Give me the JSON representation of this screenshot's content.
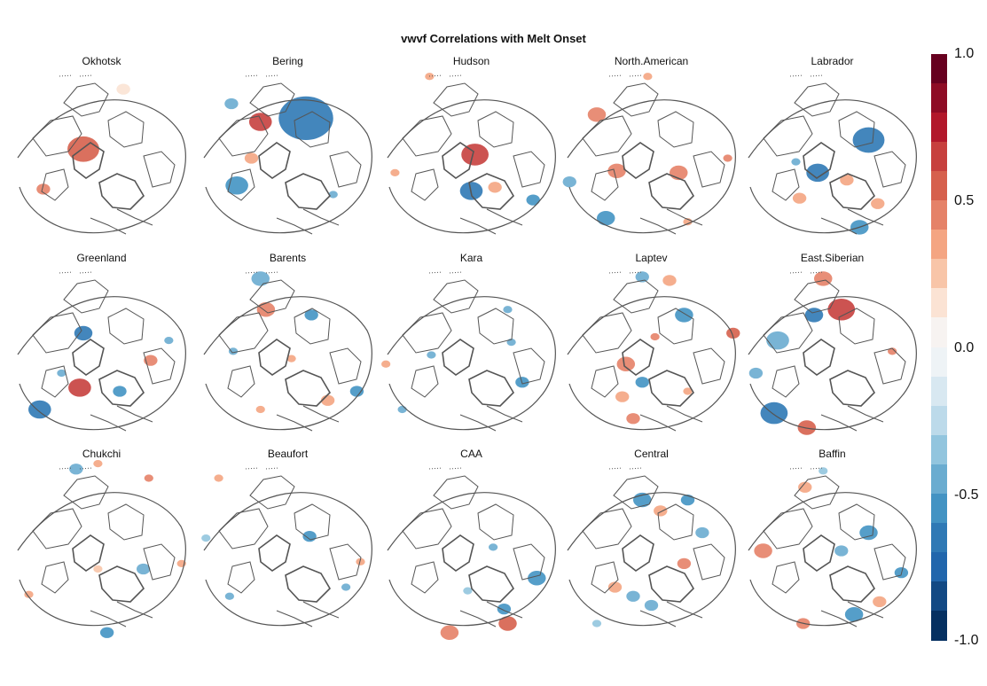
{
  "title": "vwvf Correlations with Melt Onset",
  "panels": [
    {
      "name": "Okhotsk",
      "blobs": [
        [
          0.62,
          0.12,
          0.03,
          0.15
        ],
        [
          0.4,
          0.45,
          0.07,
          0.6
        ],
        [
          0.18,
          0.67,
          0.03,
          0.45
        ]
      ]
    },
    {
      "name": "Bering",
      "blobs": [
        [
          0.6,
          0.28,
          0.12,
          -0.65
        ],
        [
          0.35,
          0.3,
          0.05,
          0.7
        ],
        [
          0.19,
          0.2,
          0.03,
          -0.45
        ],
        [
          0.3,
          0.5,
          0.03,
          0.4
        ],
        [
          0.22,
          0.65,
          0.05,
          -0.5
        ],
        [
          0.75,
          0.7,
          0.02,
          -0.4
        ]
      ]
    },
    {
      "name": "Hudson",
      "blobs": [
        [
          0.52,
          0.48,
          0.06,
          0.7
        ],
        [
          0.5,
          0.68,
          0.05,
          -0.6
        ],
        [
          0.63,
          0.66,
          0.03,
          0.4
        ],
        [
          0.84,
          0.73,
          0.03,
          -0.5
        ],
        [
          0.27,
          0.05,
          0.02,
          0.4
        ],
        [
          0.08,
          0.58,
          0.02,
          0.4
        ]
      ]
    },
    {
      "name": "North.American",
      "blobs": [
        [
          0.48,
          0.05,
          0.02,
          0.4
        ],
        [
          0.2,
          0.26,
          0.04,
          0.45
        ],
        [
          0.31,
          0.57,
          0.04,
          0.45
        ],
        [
          0.65,
          0.58,
          0.04,
          0.5
        ],
        [
          0.25,
          0.83,
          0.04,
          -0.5
        ],
        [
          0.05,
          0.63,
          0.03,
          -0.45
        ],
        [
          0.92,
          0.5,
          0.02,
          0.5
        ],
        [
          0.7,
          0.85,
          0.02,
          0.35
        ]
      ]
    },
    {
      "name": "Labrador",
      "blobs": [
        [
          0.7,
          0.4,
          0.07,
          -0.65
        ],
        [
          0.42,
          0.58,
          0.05,
          -0.6
        ],
        [
          0.58,
          0.62,
          0.03,
          0.4
        ],
        [
          0.32,
          0.72,
          0.03,
          0.4
        ],
        [
          0.65,
          0.88,
          0.04,
          -0.5
        ],
        [
          0.75,
          0.75,
          0.03,
          0.4
        ],
        [
          0.3,
          0.52,
          0.02,
          -0.45
        ]
      ]
    },
    {
      "name": "Greenland",
      "blobs": [
        [
          0.4,
          0.38,
          0.04,
          -0.6
        ],
        [
          0.38,
          0.68,
          0.05,
          0.65
        ],
        [
          0.16,
          0.8,
          0.05,
          -0.6
        ],
        [
          0.6,
          0.7,
          0.03,
          -0.5
        ],
        [
          0.77,
          0.53,
          0.03,
          0.5
        ],
        [
          0.87,
          0.42,
          0.02,
          -0.4
        ],
        [
          0.28,
          0.6,
          0.02,
          -0.4
        ]
      ]
    },
    {
      "name": "Barents",
      "blobs": [
        [
          0.38,
          0.25,
          0.04,
          0.45
        ],
        [
          0.63,
          0.28,
          0.03,
          -0.55
        ],
        [
          0.35,
          0.08,
          0.04,
          -0.4
        ],
        [
          0.88,
          0.7,
          0.03,
          -0.5
        ],
        [
          0.72,
          0.75,
          0.03,
          0.4
        ],
        [
          0.35,
          0.8,
          0.02,
          0.4
        ],
        [
          0.2,
          0.48,
          0.02,
          -0.4
        ],
        [
          0.52,
          0.52,
          0.02,
          0.4
        ]
      ]
    },
    {
      "name": "Kara",
      "blobs": [
        [
          0.7,
          0.25,
          0.02,
          -0.4
        ],
        [
          0.72,
          0.43,
          0.02,
          -0.4
        ],
        [
          0.78,
          0.65,
          0.03,
          -0.5
        ],
        [
          0.12,
          0.8,
          0.02,
          -0.4
        ],
        [
          0.03,
          0.55,
          0.02,
          0.4
        ],
        [
          0.28,
          0.5,
          0.02,
          -0.4
        ]
      ]
    },
    {
      "name": "Laptev",
      "blobs": [
        [
          0.45,
          0.07,
          0.03,
          -0.45
        ],
        [
          0.6,
          0.09,
          0.03,
          0.4
        ],
        [
          0.68,
          0.28,
          0.04,
          -0.55
        ],
        [
          0.95,
          0.38,
          0.03,
          0.55
        ],
        [
          0.52,
          0.4,
          0.02,
          0.45
        ],
        [
          0.45,
          0.65,
          0.03,
          -0.55
        ],
        [
          0.36,
          0.55,
          0.04,
          0.5
        ],
        [
          0.34,
          0.73,
          0.03,
          0.4
        ],
        [
          0.4,
          0.85,
          0.03,
          0.45
        ],
        [
          0.7,
          0.7,
          0.02,
          0.4
        ]
      ]
    },
    {
      "name": "East.Siberian",
      "blobs": [
        [
          0.55,
          0.25,
          0.06,
          0.65
        ],
        [
          0.4,
          0.28,
          0.04,
          -0.6
        ],
        [
          0.45,
          0.08,
          0.04,
          0.45
        ],
        [
          0.2,
          0.42,
          0.05,
          -0.45
        ],
        [
          0.18,
          0.82,
          0.06,
          -0.65
        ],
        [
          0.36,
          0.9,
          0.04,
          0.55
        ],
        [
          0.08,
          0.6,
          0.03,
          -0.4
        ],
        [
          0.83,
          0.48,
          0.02,
          0.45
        ]
      ]
    },
    {
      "name": "Chukchi",
      "blobs": [
        [
          0.36,
          0.05,
          0.03,
          -0.45
        ],
        [
          0.48,
          0.02,
          0.02,
          0.4
        ],
        [
          0.76,
          0.1,
          0.02,
          0.45
        ],
        [
          0.73,
          0.6,
          0.03,
          -0.4
        ],
        [
          0.94,
          0.57,
          0.02,
          0.4
        ],
        [
          0.1,
          0.74,
          0.02,
          0.4
        ],
        [
          0.53,
          0.95,
          0.03,
          -0.5
        ],
        [
          0.48,
          0.6,
          0.02,
          0.3
        ]
      ]
    },
    {
      "name": "Beaufort",
      "blobs": [
        [
          0.12,
          0.1,
          0.02,
          0.4
        ],
        [
          0.62,
          0.42,
          0.03,
          -0.5
        ],
        [
          0.82,
          0.7,
          0.02,
          -0.4
        ],
        [
          0.18,
          0.75,
          0.02,
          -0.4
        ],
        [
          0.05,
          0.43,
          0.02,
          -0.35
        ],
        [
          0.9,
          0.56,
          0.02,
          0.4
        ]
      ]
    },
    {
      "name": "CAA",
      "blobs": [
        [
          0.86,
          0.65,
          0.04,
          -0.55
        ],
        [
          0.68,
          0.82,
          0.03,
          -0.5
        ],
        [
          0.7,
          0.9,
          0.04,
          0.55
        ],
        [
          0.38,
          0.95,
          0.04,
          0.45
        ],
        [
          0.62,
          0.48,
          0.02,
          -0.4
        ],
        [
          0.48,
          0.72,
          0.02,
          -0.35
        ]
      ]
    },
    {
      "name": "Central",
      "blobs": [
        [
          0.45,
          0.22,
          0.04,
          -0.55
        ],
        [
          0.7,
          0.22,
          0.03,
          -0.5
        ],
        [
          0.55,
          0.28,
          0.03,
          0.4
        ],
        [
          0.78,
          0.4,
          0.03,
          -0.4
        ],
        [
          0.68,
          0.57,
          0.03,
          0.45
        ],
        [
          0.4,
          0.75,
          0.03,
          -0.45
        ],
        [
          0.3,
          0.7,
          0.03,
          0.4
        ],
        [
          0.5,
          0.8,
          0.03,
          -0.4
        ],
        [
          0.2,
          0.9,
          0.02,
          -0.35
        ]
      ]
    },
    {
      "name": "Baffin",
      "blobs": [
        [
          0.12,
          0.5,
          0.04,
          0.5
        ],
        [
          0.7,
          0.4,
          0.04,
          -0.55
        ],
        [
          0.55,
          0.5,
          0.03,
          -0.45
        ],
        [
          0.88,
          0.62,
          0.03,
          -0.5
        ],
        [
          0.62,
          0.85,
          0.04,
          -0.5
        ],
        [
          0.34,
          0.9,
          0.03,
          0.45
        ],
        [
          0.76,
          0.78,
          0.03,
          0.4
        ],
        [
          0.35,
          0.15,
          0.03,
          0.4
        ],
        [
          0.45,
          0.06,
          0.02,
          -0.35
        ]
      ]
    }
  ],
  "colorbar": {
    "min": -1.0,
    "max": 1.0,
    "tick_labels": [
      "1.0",
      "0.5",
      "0.0",
      "-0.5",
      "-1.0"
    ],
    "colors": [
      "#67001f",
      "#8e0c25",
      "#b2182b",
      "#c7403e",
      "#d6604d",
      "#e58268",
      "#f4a582",
      "#f8c5a8",
      "#fbe3d4",
      "#f7f3f1",
      "#eef3f6",
      "#d8e8f1",
      "#bcdaea",
      "#92c5de",
      "#6aacd0",
      "#4393c3",
      "#2f79b5",
      "#2166ac",
      "#124984",
      "#053061"
    ]
  }
}
